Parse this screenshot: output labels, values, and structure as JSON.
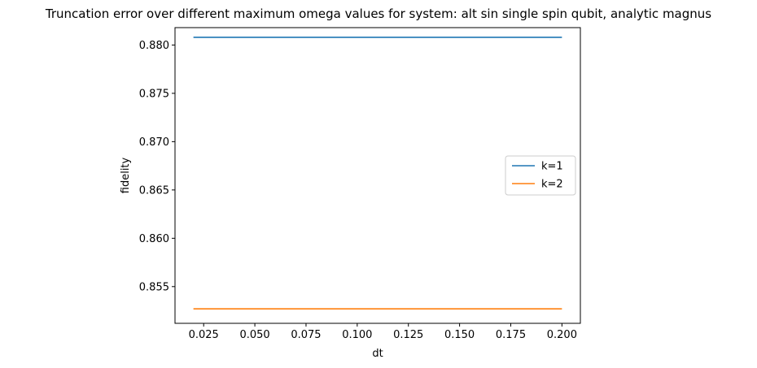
{
  "chart_data": {
    "type": "line",
    "title": "Truncation error over different maximum omega values for system: alt sin single spin qubit, analytic magnus",
    "xlabel": "dt",
    "ylabel": "fidelity",
    "xlim": [
      0.011,
      0.209
    ],
    "ylim": [
      0.8512,
      0.8818
    ],
    "x_ticks": [
      0.025,
      0.05,
      0.075,
      0.1,
      0.125,
      0.15,
      0.175,
      0.2
    ],
    "x_tick_labels": [
      "0.025",
      "0.050",
      "0.075",
      "0.100",
      "0.125",
      "0.150",
      "0.175",
      "0.200"
    ],
    "y_ticks": [
      0.855,
      0.86,
      0.865,
      0.87,
      0.875,
      0.88
    ],
    "y_tick_labels": [
      "0.855",
      "0.860",
      "0.865",
      "0.870",
      "0.875",
      "0.880"
    ],
    "grid": false,
    "legend_position": "center-right",
    "series": [
      {
        "name": "k=1",
        "color": "#1f77b4",
        "x": [
          0.02,
          0.2
        ],
        "y": [
          0.8808,
          0.8808
        ]
      },
      {
        "name": "k=2",
        "color": "#ff7f0e",
        "x": [
          0.02,
          0.2
        ],
        "y": [
          0.8527,
          0.8527
        ]
      }
    ]
  }
}
